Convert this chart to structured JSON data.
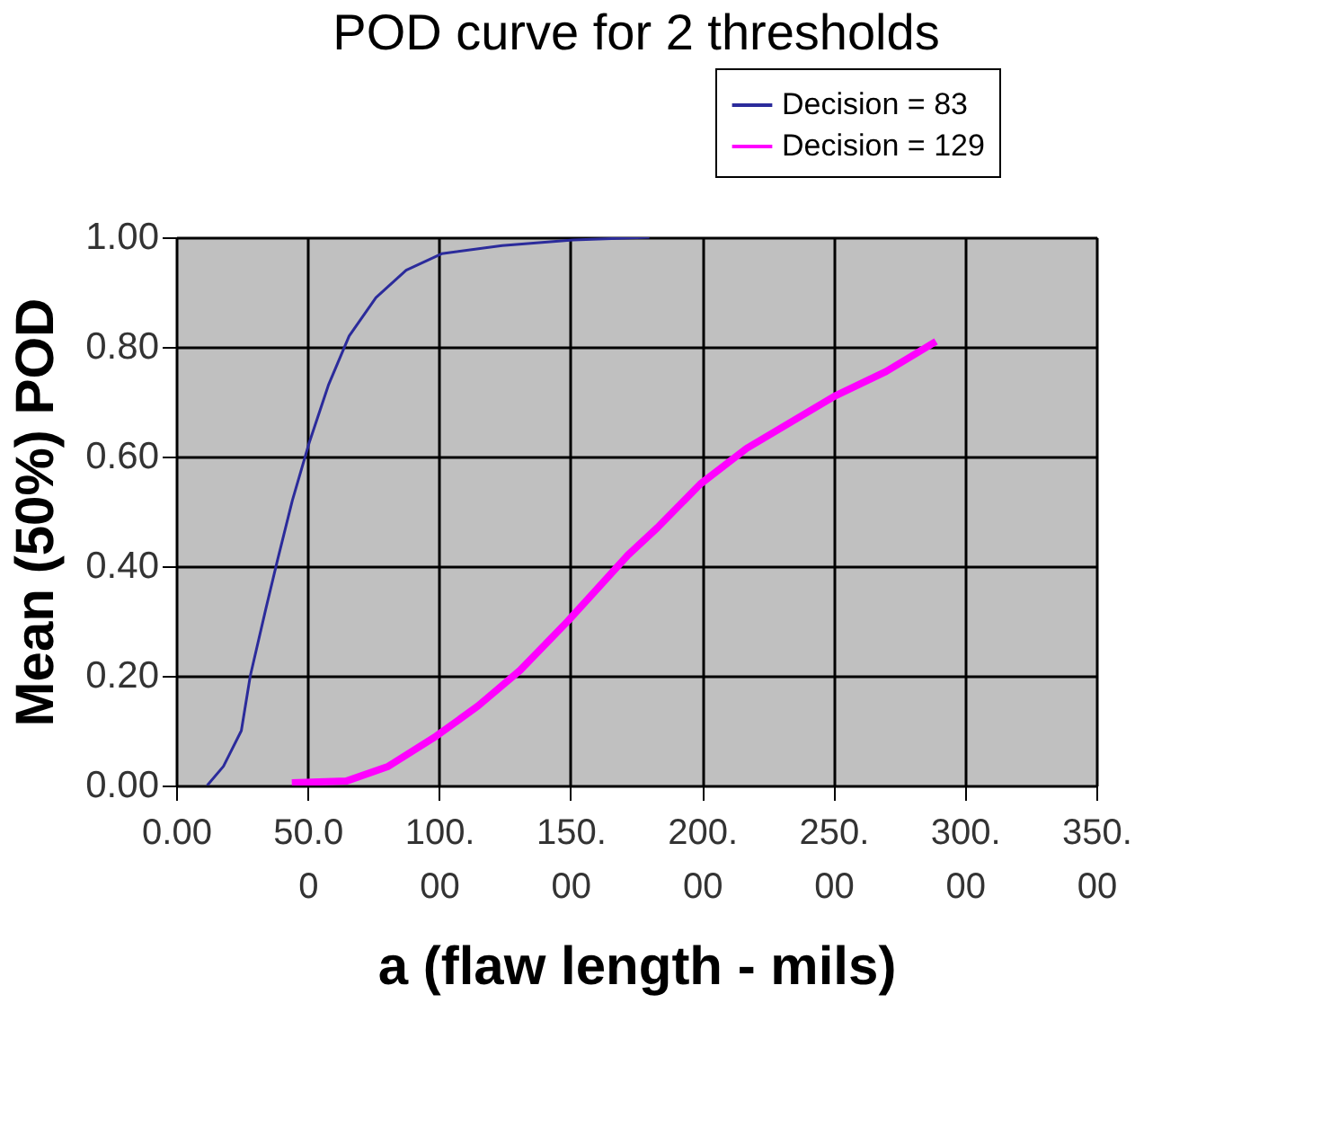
{
  "chart_data": {
    "type": "line",
    "title": "POD curve for 2 thresholds",
    "xlabel": "a (flaw length - mils)",
    "ylabel": "Mean (50%) POD",
    "series": [
      {
        "name": "Decision = 83",
        "color": "#2b2b9b",
        "x": [
          11.8,
          18,
          24.8,
          28.2,
          34,
          38.5,
          44.2,
          50.6,
          57.9,
          65.8,
          76,
          87.5,
          101,
          124,
          151,
          180
        ],
        "values": [
          0,
          0.035,
          0.1,
          0.2,
          0.32,
          0.41,
          0.52,
          0.625,
          0.73,
          0.82,
          0.89,
          0.94,
          0.97,
          0.985,
          0.995,
          1.0
        ]
      },
      {
        "name": "Decision = 129",
        "color": "#ff00ff",
        "x": [
          44,
          64.7,
          80.7,
          98.9,
          114.8,
          130.8,
          149,
          171.8,
          183,
          199.4,
          217,
          250.4,
          270,
          289
        ],
        "values": [
          0.005,
          0.008,
          0.035,
          0.09,
          0.145,
          0.21,
          0.3,
          0.42,
          0.47,
          0.55,
          0.615,
          0.71,
          0.755,
          0.81
        ]
      }
    ],
    "xlim": [
      0,
      350
    ],
    "xticks": [
      {
        "value": 0,
        "label": "0.00"
      },
      {
        "value": 50,
        "label": "50.00"
      },
      {
        "value": 100,
        "label": "100.00"
      },
      {
        "value": 150,
        "label": "150.00"
      },
      {
        "value": 200,
        "label": "200.00"
      },
      {
        "value": 250,
        "label": "250.00"
      },
      {
        "value": 300,
        "label": "300.00"
      },
      {
        "value": 350,
        "label": "350.00"
      }
    ],
    "ylim": [
      0,
      1
    ],
    "yticks": [
      {
        "value": 0,
        "label": "0.00"
      },
      {
        "value": 0.2,
        "label": "0.20"
      },
      {
        "value": 0.4,
        "label": "0.40"
      },
      {
        "value": 0.6,
        "label": "0.60"
      },
      {
        "value": 0.8,
        "label": "0.80"
      },
      {
        "value": 1,
        "label": "1.00"
      }
    ],
    "grid": true,
    "legend": "top right",
    "marker": "none",
    "line_style": "solid"
  }
}
